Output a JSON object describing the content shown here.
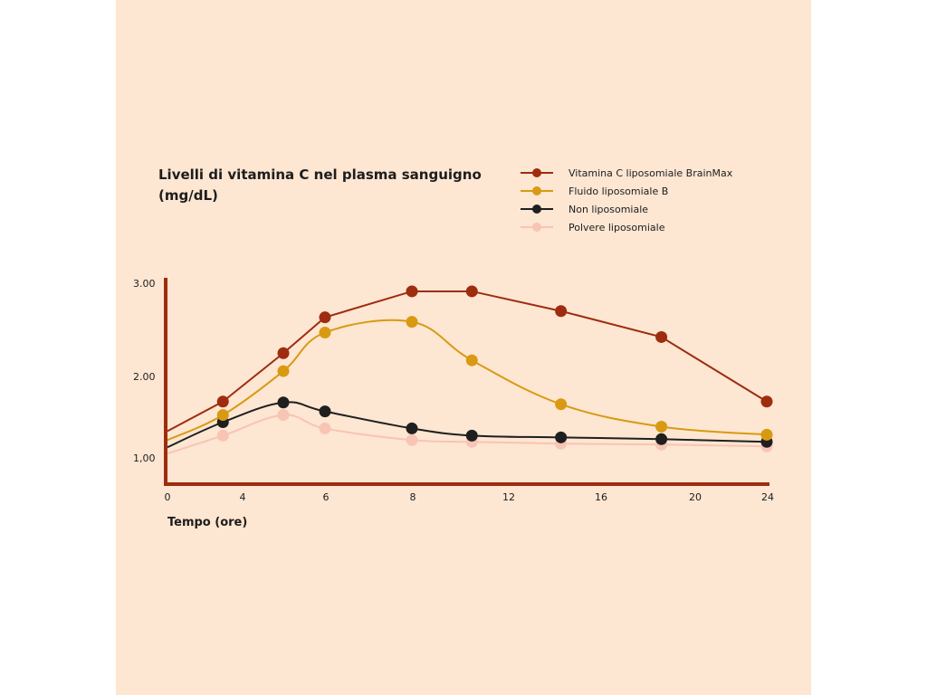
{
  "chart_data": {
    "type": "line",
    "title_lines": [
      "Livelli di vitamina C nel plasma sanguigno",
      "(mg/dL)"
    ],
    "xlabel": "Tempo (ore)",
    "ylabel": "",
    "x_ticks": [
      {
        "value": 0,
        "label": "0"
      },
      {
        "value": 4,
        "label": "4"
      },
      {
        "value": 6,
        "label": "6"
      },
      {
        "value": 8,
        "label": "8"
      },
      {
        "value": 12,
        "label": "12"
      },
      {
        "value": 16,
        "label": "16"
      },
      {
        "value": 20,
        "label": "20"
      },
      {
        "value": 24,
        "label": "24"
      }
    ],
    "y_ticks": [
      {
        "value": 1.0,
        "label": "1,00"
      },
      {
        "value": 2.0,
        "label": "2.00"
      },
      {
        "value": 3.0,
        "label": "3.00"
      }
    ],
    "xlim": [
      0,
      24
    ],
    "ylim": [
      0.85,
      3.1
    ],
    "grid": false,
    "legend_position": "top-right",
    "series": [
      {
        "name": "Vitamina C liposomiale BrainMax",
        "color": "#9e2c0f",
        "smooth": false,
        "start": 1.4,
        "x": [
          3,
          5,
          6,
          8,
          10.5,
          14.3,
          18.6,
          24
        ],
        "values": [
          1.73,
          2.27,
          2.67,
          2.96,
          2.96,
          2.74,
          2.45,
          1.73
        ]
      },
      {
        "name": "Fluido liposomiale B",
        "color": "#d89a12",
        "smooth": true,
        "start": 1.3,
        "x": [
          3,
          5,
          6,
          8,
          10.5,
          14.3,
          18.6,
          24
        ],
        "values": [
          1.58,
          2.07,
          2.5,
          2.62,
          2.19,
          1.7,
          1.45,
          1.36
        ]
      },
      {
        "name": "Non liposomiale",
        "color": "#1f1f1f",
        "smooth": true,
        "start": 1.22,
        "x": [
          3,
          5,
          6,
          8,
          10.5,
          14.3,
          18.6,
          24
        ],
        "values": [
          1.5,
          1.72,
          1.62,
          1.43,
          1.35,
          1.33,
          1.31,
          1.28
        ]
      },
      {
        "name": "Polvere liposomiale",
        "color": "#f8c4b4",
        "smooth": true,
        "start": 1.15,
        "x": [
          3,
          5,
          6,
          8,
          10.5,
          14.3,
          18.6,
          24
        ],
        "values": [
          1.35,
          1.58,
          1.43,
          1.3,
          1.28,
          1.26,
          1.25,
          1.23
        ]
      }
    ],
    "axis_color": "#9e2c0f"
  }
}
